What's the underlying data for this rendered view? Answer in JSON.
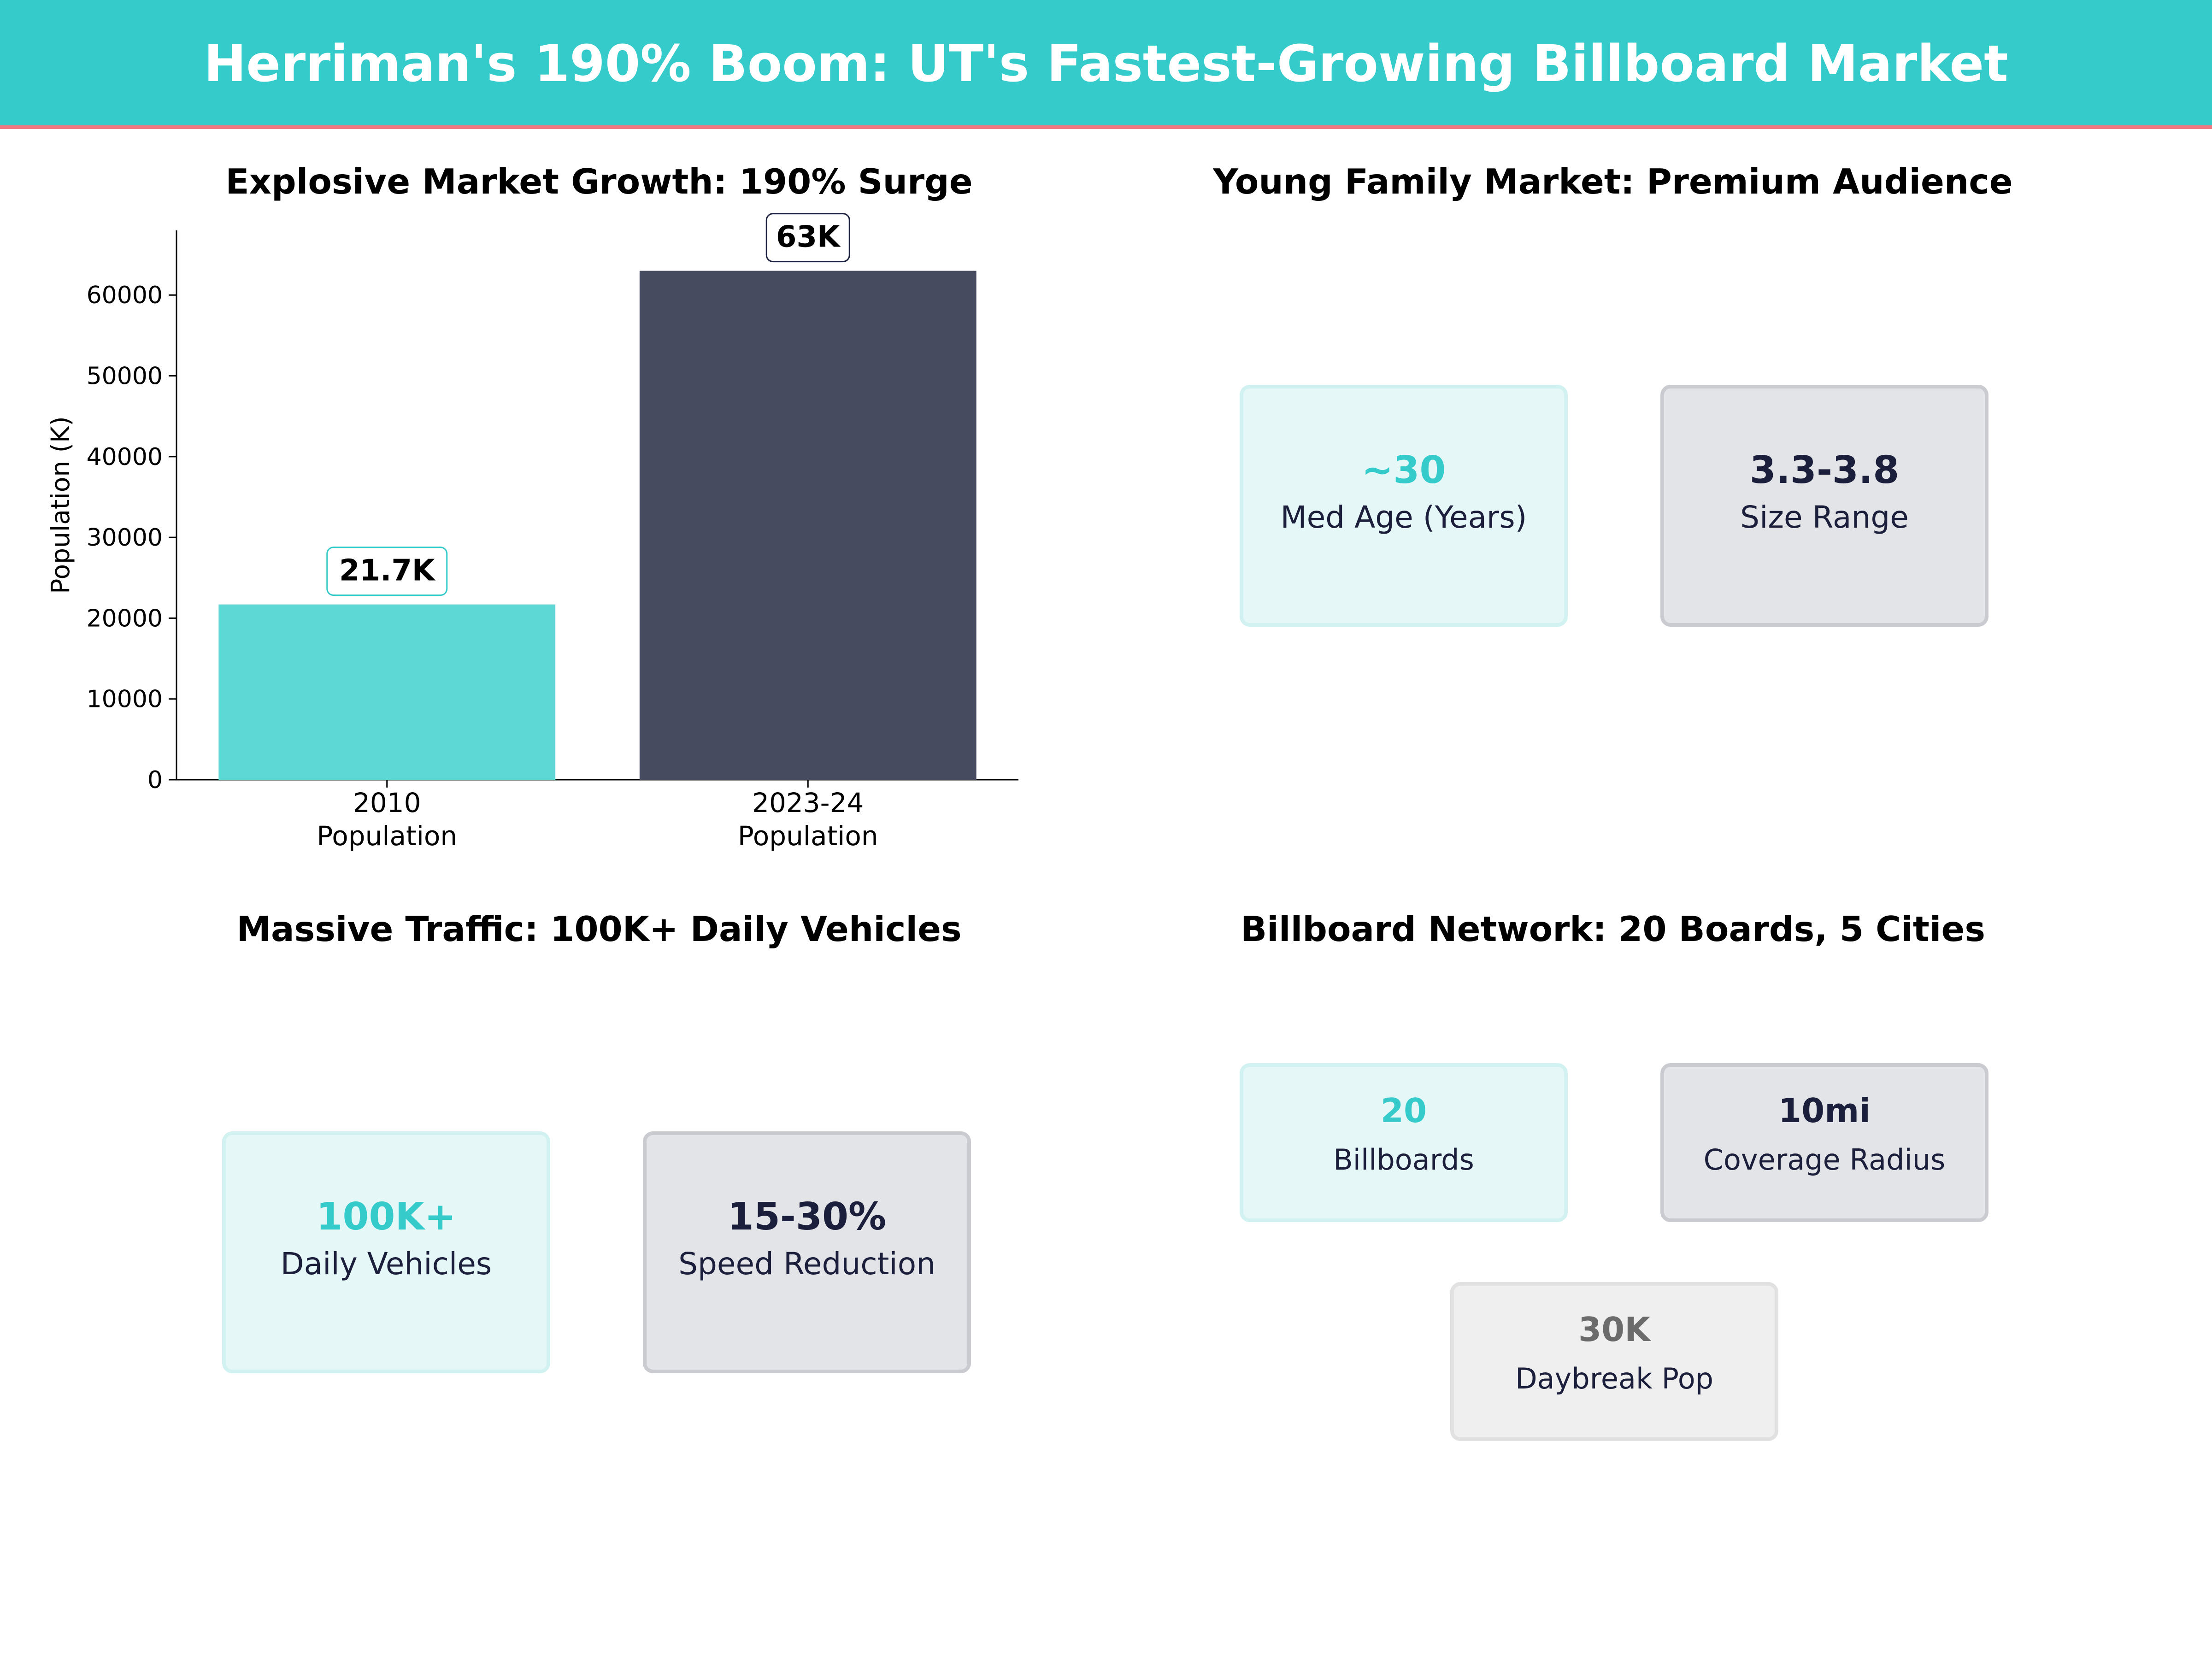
{
  "header": {
    "title": "Herriman's 190% Boom: UT's Fastest-Growing Billboard Market"
  },
  "colors": {
    "banner": "#35CBCB",
    "banner_accent": "#F07880",
    "teal": "#35CBCB",
    "teal_bar": "#5DD8D4",
    "navy": "#1B1F3B",
    "navy_bar": "#464B60",
    "gray_text": "#6B6B6B"
  },
  "growth_panel": {
    "title": "Explosive Market Growth: 190% Surge"
  },
  "chart_data": {
    "type": "bar",
    "title": "Explosive Market Growth: 190% Surge",
    "categories": [
      [
        "2010",
        "Population"
      ],
      [
        "2023-24",
        "Population"
      ]
    ],
    "values": [
      21700,
      63000
    ],
    "data_labels": [
      "21.7K",
      "63K"
    ],
    "bar_colors": [
      "#5DD8D4",
      "#464B60"
    ],
    "label_border_colors": [
      "#35CBCB",
      "#1B1F3B"
    ],
    "xlabel": "",
    "ylabel": "Population (K)",
    "ylim": [
      0,
      68000
    ],
    "yticks": [
      0,
      10000,
      20000,
      30000,
      40000,
      50000,
      60000
    ],
    "grid": false,
    "legend": "none"
  },
  "family_panel": {
    "title": "Young Family Market: Premium Audience",
    "cards": [
      {
        "value": "~30",
        "label": "Med Age (Years)"
      },
      {
        "value": "3.3-3.8",
        "label": "Size Range"
      }
    ]
  },
  "traffic_panel": {
    "title": "Massive Traffic: 100K+ Daily Vehicles",
    "cards": [
      {
        "value": "100K+",
        "label": "Daily Vehicles"
      },
      {
        "value": "15-30%",
        "label": "Speed Reduction"
      }
    ]
  },
  "network_panel": {
    "title": "Billboard Network: 20 Boards, 5 Cities",
    "cards": [
      {
        "value": "20",
        "label": "Billboards"
      },
      {
        "value": "10mi",
        "label": "Coverage Radius"
      },
      {
        "value": "30K",
        "label": "Daybreak Pop"
      }
    ]
  }
}
